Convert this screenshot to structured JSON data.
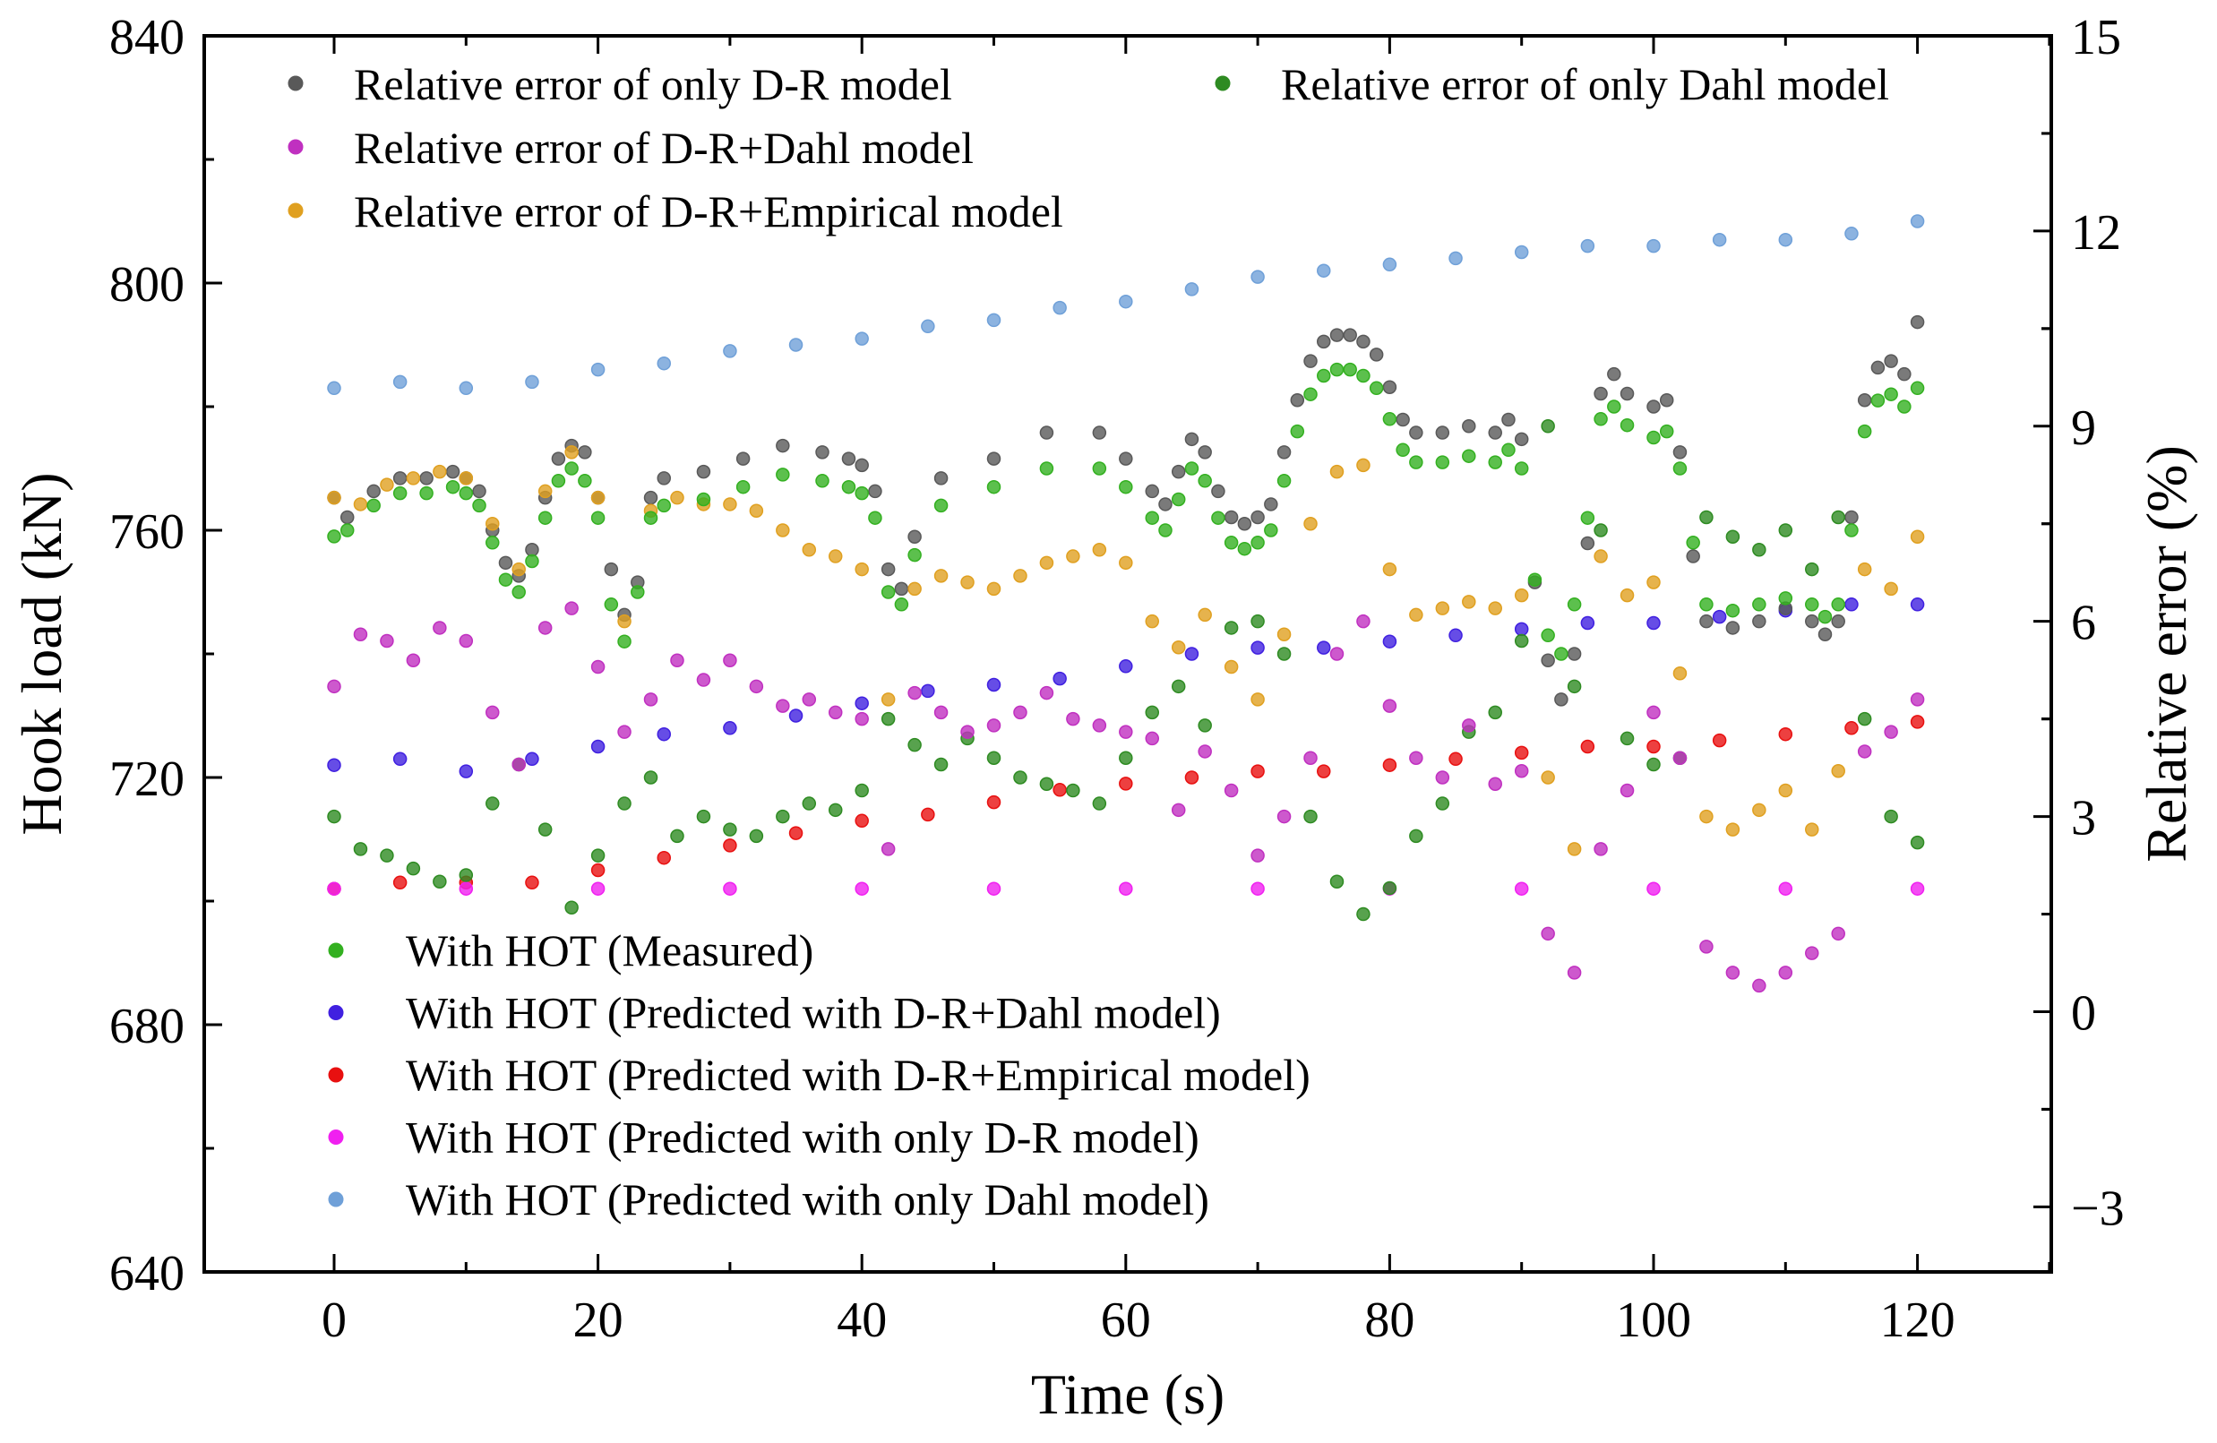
{
  "chart_data": {
    "type": "scatter",
    "title": "",
    "xlabel": "Time (s)",
    "ylabel_left": "Hook load (kN)",
    "ylabel_right": "Relative error (%)",
    "xlim": [
      -10,
      130
    ],
    "ylim_left": [
      640,
      840
    ],
    "ylim_right": [
      -4,
      15
    ],
    "x_ticks": [
      "0",
      "20",
      "40",
      "60",
      "80",
      "100",
      "120"
    ],
    "y_left_ticks": [
      "640",
      "680",
      "720",
      "760",
      "800",
      "840"
    ],
    "y_right_ticks": [
      "−3",
      "0",
      "3",
      "6",
      "9",
      "12",
      "15"
    ],
    "grid": false,
    "legend_top": [
      {
        "name": "Relative error of only D-R model",
        "color": "#595959"
      },
      {
        "name": "Relative error of only Dahl model",
        "color": "#2e8b22"
      },
      {
        "name": "Relative error of D-R+Dahl model",
        "color": "#c030c0"
      },
      {
        "name": "Relative error of D-R+Empirical model",
        "color": "#e0a020"
      }
    ],
    "legend_bottom": [
      {
        "name": "With HOT (Measured)",
        "color": "#33b020"
      },
      {
        "name": "With HOT (Predicted with D-R+Dahl model)",
        "color": "#4020e0"
      },
      {
        "name": "With HOT (Predicted with D-R+Empirical model)",
        "color": "#e81010"
      },
      {
        "name": "With HOT (Predicted with only D-R model)",
        "color": "#f020f0"
      },
      {
        "name": "With HOT (Predicted with only Dahl model)",
        "color": "#6fa0d8"
      }
    ],
    "series": [
      {
        "name": "With HOT (Measured)",
        "axis": "left",
        "color": "#33b020",
        "x": [
          0,
          1,
          3,
          5,
          7,
          9,
          10,
          11,
          12,
          13,
          14,
          15,
          16,
          17,
          18,
          19,
          20,
          21,
          22,
          23,
          24,
          25,
          28,
          31,
          34,
          37,
          39,
          40,
          41,
          42,
          43,
          44,
          46,
          50,
          54,
          58,
          60,
          62,
          63,
          64,
          65,
          66,
          67,
          68,
          69,
          70,
          71,
          72,
          73,
          74,
          75,
          76,
          77,
          78,
          79,
          80,
          81,
          82,
          84,
          86,
          88,
          89,
          90,
          91,
          92,
          93,
          94,
          95,
          96,
          97,
          98,
          100,
          101,
          102,
          103,
          104,
          106,
          108,
          110,
          112,
          113,
          114,
          115,
          116,
          117,
          118,
          119,
          120
        ],
        "y": [
          759,
          760,
          764,
          766,
          766,
          767,
          766,
          764,
          758,
          752,
          750,
          755,
          762,
          768,
          770,
          768,
          762,
          748,
          742,
          750,
          762,
          764,
          765,
          767,
          769,
          768,
          767,
          766,
          762,
          750,
          748,
          756,
          764,
          767,
          770,
          770,
          767,
          762,
          760,
          765,
          770,
          768,
          762,
          758,
          757,
          758,
          760,
          768,
          776,
          782,
          785,
          786,
          786,
          785,
          783,
          778,
          773,
          771,
          771,
          772,
          771,
          773,
          770,
          752,
          743,
          740,
          748,
          762,
          778,
          780,
          777,
          775,
          776,
          770,
          758,
          748,
          747,
          748,
          749,
          748,
          746,
          748,
          760,
          776,
          781,
          782,
          780,
          783
        ]
      },
      {
        "name": "With HOT (Predicted with D-R+Dahl model)",
        "axis": "left",
        "color": "#4020e0",
        "x": [
          0,
          5,
          10,
          15,
          20,
          25,
          30,
          35,
          40,
          45,
          50,
          55,
          60,
          65,
          70,
          75,
          80,
          85,
          90,
          95,
          100,
          105,
          110,
          115,
          120
        ],
        "y": [
          722,
          723,
          721,
          723,
          725,
          727,
          728,
          730,
          732,
          734,
          735,
          736,
          738,
          740,
          741,
          741,
          742,
          743,
          744,
          745,
          745,
          746,
          747,
          748,
          748
        ]
      },
      {
        "name": "With HOT (Predicted with D-R+Empirical model)",
        "axis": "left",
        "color": "#e81010",
        "x": [
          0,
          5,
          10,
          15,
          20,
          25,
          30,
          35,
          40,
          45,
          50,
          55,
          60,
          65,
          70,
          75,
          80,
          85,
          90,
          95,
          100,
          105,
          110,
          115,
          120
        ],
        "y": [
          702,
          703,
          703,
          703,
          705,
          707,
          709,
          711,
          713,
          714,
          716,
          718,
          719,
          720,
          721,
          721,
          722,
          723,
          724,
          725,
          725,
          726,
          727,
          728,
          729
        ]
      },
      {
        "name": "With HOT (Predicted with only D-R model)",
        "axis": "left",
        "color": "#f020f0",
        "x": [
          0,
          10,
          20,
          30,
          40,
          50,
          60,
          70,
          80,
          90,
          100,
          110,
          120
        ],
        "y": [
          702,
          702,
          702,
          702,
          702,
          702,
          702,
          702,
          702,
          702,
          702,
          702,
          702
        ]
      },
      {
        "name": "With HOT (Predicted with only Dahl model)",
        "axis": "left",
        "color": "#6fa0d8",
        "x": [
          0,
          5,
          10,
          15,
          20,
          25,
          30,
          35,
          40,
          45,
          50,
          55,
          60,
          65,
          70,
          75,
          80,
          85,
          90,
          95,
          100,
          105,
          110,
          115,
          120
        ],
        "y": [
          783,
          784,
          783,
          784,
          786,
          787,
          789,
          790,
          791,
          793,
          794,
          796,
          797,
          799,
          801,
          802,
          803,
          804,
          805,
          806,
          806,
          807,
          807,
          808,
          810
        ]
      },
      {
        "name": "Relative error of only D-R model",
        "axis": "right",
        "color": "#595959",
        "x": [
          0,
          1,
          3,
          5,
          7,
          9,
          10,
          11,
          12,
          13,
          14,
          15,
          16,
          17,
          18,
          19,
          20,
          21,
          22,
          23,
          24,
          25,
          28,
          31,
          34,
          37,
          39,
          40,
          41,
          42,
          43,
          44,
          46,
          50,
          54,
          58,
          60,
          62,
          63,
          64,
          65,
          66,
          67,
          68,
          69,
          70,
          71,
          72,
          73,
          74,
          75,
          76,
          77,
          78,
          79,
          80,
          81,
          82,
          84,
          86,
          88,
          89,
          90,
          91,
          92,
          93,
          94,
          95,
          96,
          97,
          98,
          100,
          101,
          102,
          103,
          104,
          106,
          108,
          110,
          112,
          113,
          114,
          115,
          116,
          117,
          118,
          119,
          120
        ],
        "y": [
          7.9,
          7.6,
          8.0,
          8.2,
          8.2,
          8.3,
          8.2,
          8.0,
          7.4,
          6.9,
          6.7,
          7.1,
          7.9,
          8.5,
          8.7,
          8.6,
          7.9,
          6.8,
          6.1,
          6.6,
          7.9,
          8.2,
          8.3,
          8.5,
          8.7,
          8.6,
          8.5,
          8.4,
          8.0,
          6.8,
          6.5,
          7.3,
          8.2,
          8.5,
          8.9,
          8.9,
          8.5,
          8.0,
          7.8,
          8.3,
          8.8,
          8.6,
          8.0,
          7.6,
          7.5,
          7.6,
          7.8,
          8.6,
          9.4,
          10.0,
          10.3,
          10.4,
          10.4,
          10.3,
          10.1,
          9.6,
          9.1,
          8.9,
          8.9,
          9.0,
          8.9,
          9.1,
          8.8,
          6.6,
          5.4,
          4.8,
          5.5,
          7.2,
          9.5,
          9.8,
          9.5,
          9.3,
          9.4,
          8.6,
          7.0,
          6.0,
          5.9,
          6.0,
          6.2,
          6.0,
          5.8,
          6.0,
          7.6,
          9.4,
          9.9,
          10.0,
          9.8,
          10.6
        ]
      },
      {
        "name": "Relative error of only Dahl model",
        "axis": "right",
        "color": "#2e8b22",
        "x": [
          0,
          2,
          4,
          6,
          8,
          10,
          12,
          14,
          16,
          18,
          20,
          22,
          24,
          26,
          28,
          30,
          32,
          34,
          36,
          38,
          40,
          42,
          44,
          46,
          48,
          50,
          52,
          54,
          56,
          58,
          60,
          62,
          64,
          66,
          68,
          70,
          72,
          74,
          76,
          78,
          80,
          82,
          84,
          86,
          88,
          90,
          92,
          94,
          96,
          98,
          100,
          102,
          104,
          106,
          108,
          110,
          112,
          114,
          116,
          118,
          120
        ],
        "y": [
          3.0,
          2.5,
          2.4,
          2.2,
          2.0,
          2.1,
          3.2,
          3.8,
          2.8,
          1.6,
          2.4,
          3.2,
          3.6,
          2.7,
          3.0,
          2.8,
          2.7,
          3.0,
          3.2,
          3.1,
          3.4,
          4.5,
          4.1,
          3.8,
          4.2,
          3.9,
          3.6,
          3.5,
          3.4,
          3.2,
          3.9,
          4.6,
          5.0,
          4.4,
          5.9,
          6.0,
          5.5,
          3.0,
          2.0,
          1.5,
          1.9,
          2.7,
          3.2,
          4.3,
          4.6,
          5.7,
          9.0,
          5.0,
          7.4,
          4.2,
          3.8,
          3.9,
          7.6,
          7.3,
          7.1,
          7.4,
          6.8,
          7.6,
          4.5,
          3.0,
          2.6
        ]
      },
      {
        "name": "Relative error of D-R+Dahl model",
        "axis": "right",
        "color": "#c030c0",
        "x": [
          0,
          2,
          4,
          6,
          8,
          10,
          12,
          14,
          16,
          18,
          20,
          22,
          24,
          26,
          28,
          30,
          32,
          34,
          36,
          38,
          40,
          42,
          44,
          46,
          48,
          50,
          52,
          54,
          56,
          58,
          60,
          62,
          64,
          66,
          68,
          70,
          72,
          74,
          76,
          78,
          80,
          82,
          84,
          86,
          88,
          90,
          92,
          94,
          96,
          98,
          100,
          102,
          104,
          106,
          108,
          110,
          112,
          114,
          116,
          118,
          120
        ],
        "y": [
          5.0,
          5.8,
          5.7,
          5.4,
          5.9,
          5.7,
          4.6,
          3.8,
          5.9,
          6.2,
          5.3,
          4.3,
          4.8,
          5.4,
          5.1,
          5.4,
          5.0,
          4.7,
          4.8,
          4.6,
          4.5,
          2.5,
          4.9,
          4.6,
          4.3,
          4.4,
          4.6,
          4.9,
          4.5,
          4.4,
          4.3,
          4.2,
          3.1,
          4.0,
          3.4,
          2.4,
          3.0,
          3.9,
          5.5,
          6.0,
          4.7,
          3.9,
          3.6,
          4.4,
          3.5,
          3.7,
          1.2,
          0.6,
          2.5,
          3.4,
          4.6,
          3.9,
          1.0,
          0.6,
          0.4,
          0.6,
          0.9,
          1.2,
          4.0,
          4.3,
          4.8
        ]
      },
      {
        "name": "Relative error of D-R+Empirical model",
        "axis": "right",
        "color": "#e0a020",
        "x": [
          0,
          2,
          4,
          6,
          8,
          10,
          12,
          14,
          16,
          18,
          20,
          22,
          24,
          26,
          28,
          30,
          32,
          34,
          36,
          38,
          40,
          42,
          44,
          46,
          48,
          50,
          52,
          54,
          56,
          58,
          60,
          62,
          64,
          66,
          68,
          70,
          72,
          74,
          76,
          78,
          80,
          82,
          84,
          86,
          88,
          90,
          92,
          94,
          96,
          98,
          100,
          102,
          104,
          106,
          108,
          110,
          112,
          114,
          116,
          118,
          120
        ],
        "y": [
          7.9,
          7.8,
          8.1,
          8.2,
          8.3,
          8.2,
          7.5,
          6.8,
          8.0,
          8.6,
          7.9,
          6.0,
          7.7,
          7.9,
          7.8,
          7.8,
          7.7,
          7.4,
          7.1,
          7.0,
          6.8,
          4.8,
          6.5,
          6.7,
          6.6,
          6.5,
          6.7,
          6.9,
          7.0,
          7.1,
          6.9,
          6.0,
          5.6,
          6.1,
          5.3,
          4.8,
          5.8,
          7.5,
          8.3,
          8.4,
          6.8,
          6.1,
          6.2,
          6.3,
          6.2,
          6.4,
          3.6,
          2.5,
          7.0,
          6.4,
          6.6,
          5.2,
          3.0,
          2.8,
          3.1,
          3.4,
          2.8,
          3.7,
          6.8,
          6.5,
          7.3
        ]
      }
    ]
  }
}
